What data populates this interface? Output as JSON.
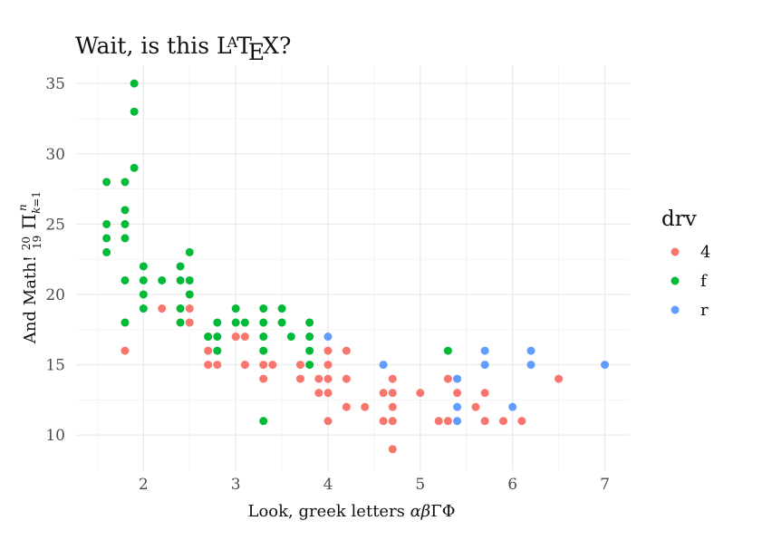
{
  "chart_data": {
    "type": "scatter",
    "title": "Wait, is this LATEX?",
    "xlabel": "Look, greek letters αβΓΦ",
    "ylabel": "And Math! 20/19 Π k=1 n",
    "xlim": [
      1.27,
      7.27
    ],
    "ylim": [
      7.5,
      36.3
    ],
    "x_ticks": [
      2,
      3,
      4,
      5,
      6,
      7
    ],
    "y_ticks": [
      10,
      15,
      20,
      25,
      30,
      35
    ],
    "x_tick_labels": [
      "2",
      "3",
      "4",
      "5",
      "6",
      "7"
    ],
    "y_tick_labels": [
      "10",
      "15",
      "20",
      "25",
      "30",
      "35"
    ],
    "grid": true,
    "legend": {
      "title": "drv",
      "position": "right",
      "entries": [
        {
          "name": "4",
          "color": "#F8766D"
        },
        {
          "name": "f",
          "color": "#00BA38"
        },
        {
          "name": "r",
          "color": "#619CFF"
        }
      ]
    },
    "series": [
      {
        "name": "4",
        "color": "#F8766D",
        "points": [
          [
            1.8,
            16
          ],
          [
            2.2,
            19
          ],
          [
            2.5,
            19
          ],
          [
            2.5,
            18
          ],
          [
            2.7,
            17
          ],
          [
            2.7,
            16
          ],
          [
            2.7,
            15
          ],
          [
            2.8,
            15
          ],
          [
            3.0,
            17
          ],
          [
            3.1,
            17
          ],
          [
            3.1,
            15
          ],
          [
            3.3,
            15
          ],
          [
            3.3,
            14
          ],
          [
            3.4,
            15
          ],
          [
            3.7,
            15
          ],
          [
            3.7,
            14
          ],
          [
            3.9,
            14
          ],
          [
            3.9,
            13
          ],
          [
            4.0,
            16
          ],
          [
            4.0,
            15
          ],
          [
            4.0,
            14
          ],
          [
            4.0,
            13
          ],
          [
            4.0,
            11
          ],
          [
            4.2,
            16
          ],
          [
            4.2,
            14
          ],
          [
            4.2,
            12
          ],
          [
            4.4,
            12
          ],
          [
            4.6,
            13
          ],
          [
            4.6,
            11
          ],
          [
            4.7,
            14
          ],
          [
            4.7,
            13
          ],
          [
            4.7,
            12
          ],
          [
            4.7,
            11
          ],
          [
            4.7,
            9
          ],
          [
            5.0,
            13
          ],
          [
            5.2,
            11
          ],
          [
            5.3,
            14
          ],
          [
            5.3,
            11
          ],
          [
            5.4,
            13
          ],
          [
            5.6,
            12
          ],
          [
            5.7,
            13
          ],
          [
            5.7,
            11
          ],
          [
            5.9,
            11
          ],
          [
            6.1,
            11
          ],
          [
            6.5,
            14
          ]
        ]
      },
      {
        "name": "f",
        "color": "#00BA38",
        "points": [
          [
            1.6,
            28
          ],
          [
            1.6,
            25
          ],
          [
            1.6,
            24
          ],
          [
            1.6,
            23
          ],
          [
            1.8,
            28
          ],
          [
            1.8,
            26
          ],
          [
            1.8,
            25
          ],
          [
            1.8,
            24
          ],
          [
            1.8,
            21
          ],
          [
            1.8,
            18
          ],
          [
            1.9,
            35
          ],
          [
            1.9,
            33
          ],
          [
            1.9,
            29
          ],
          [
            2.0,
            22
          ],
          [
            2.0,
            21
          ],
          [
            2.0,
            20
          ],
          [
            2.0,
            19
          ],
          [
            2.2,
            21
          ],
          [
            2.4,
            22
          ],
          [
            2.4,
            21
          ],
          [
            2.4,
            19
          ],
          [
            2.4,
            18
          ],
          [
            2.5,
            23
          ],
          [
            2.5,
            21
          ],
          [
            2.5,
            20
          ],
          [
            2.7,
            17
          ],
          [
            2.8,
            18
          ],
          [
            2.8,
            17
          ],
          [
            2.8,
            16
          ],
          [
            3.0,
            19
          ],
          [
            3.0,
            18
          ],
          [
            3.1,
            18
          ],
          [
            3.3,
            19
          ],
          [
            3.3,
            18
          ],
          [
            3.3,
            17
          ],
          [
            3.3,
            16
          ],
          [
            3.3,
            11
          ],
          [
            3.5,
            19
          ],
          [
            3.5,
            18
          ],
          [
            3.6,
            17
          ],
          [
            3.8,
            18
          ],
          [
            3.8,
            17
          ],
          [
            3.8,
            16
          ],
          [
            3.8,
            15
          ],
          [
            5.3,
            16
          ]
        ]
      },
      {
        "name": "r",
        "color": "#619CFF",
        "points": [
          [
            4.0,
            17
          ],
          [
            4.6,
            15
          ],
          [
            5.4,
            14
          ],
          [
            5.4,
            12
          ],
          [
            5.4,
            11
          ],
          [
            5.7,
            16
          ],
          [
            5.7,
            15
          ],
          [
            6.0,
            12
          ],
          [
            6.2,
            16
          ],
          [
            6.2,
            15
          ],
          [
            7.0,
            15
          ]
        ]
      }
    ]
  }
}
